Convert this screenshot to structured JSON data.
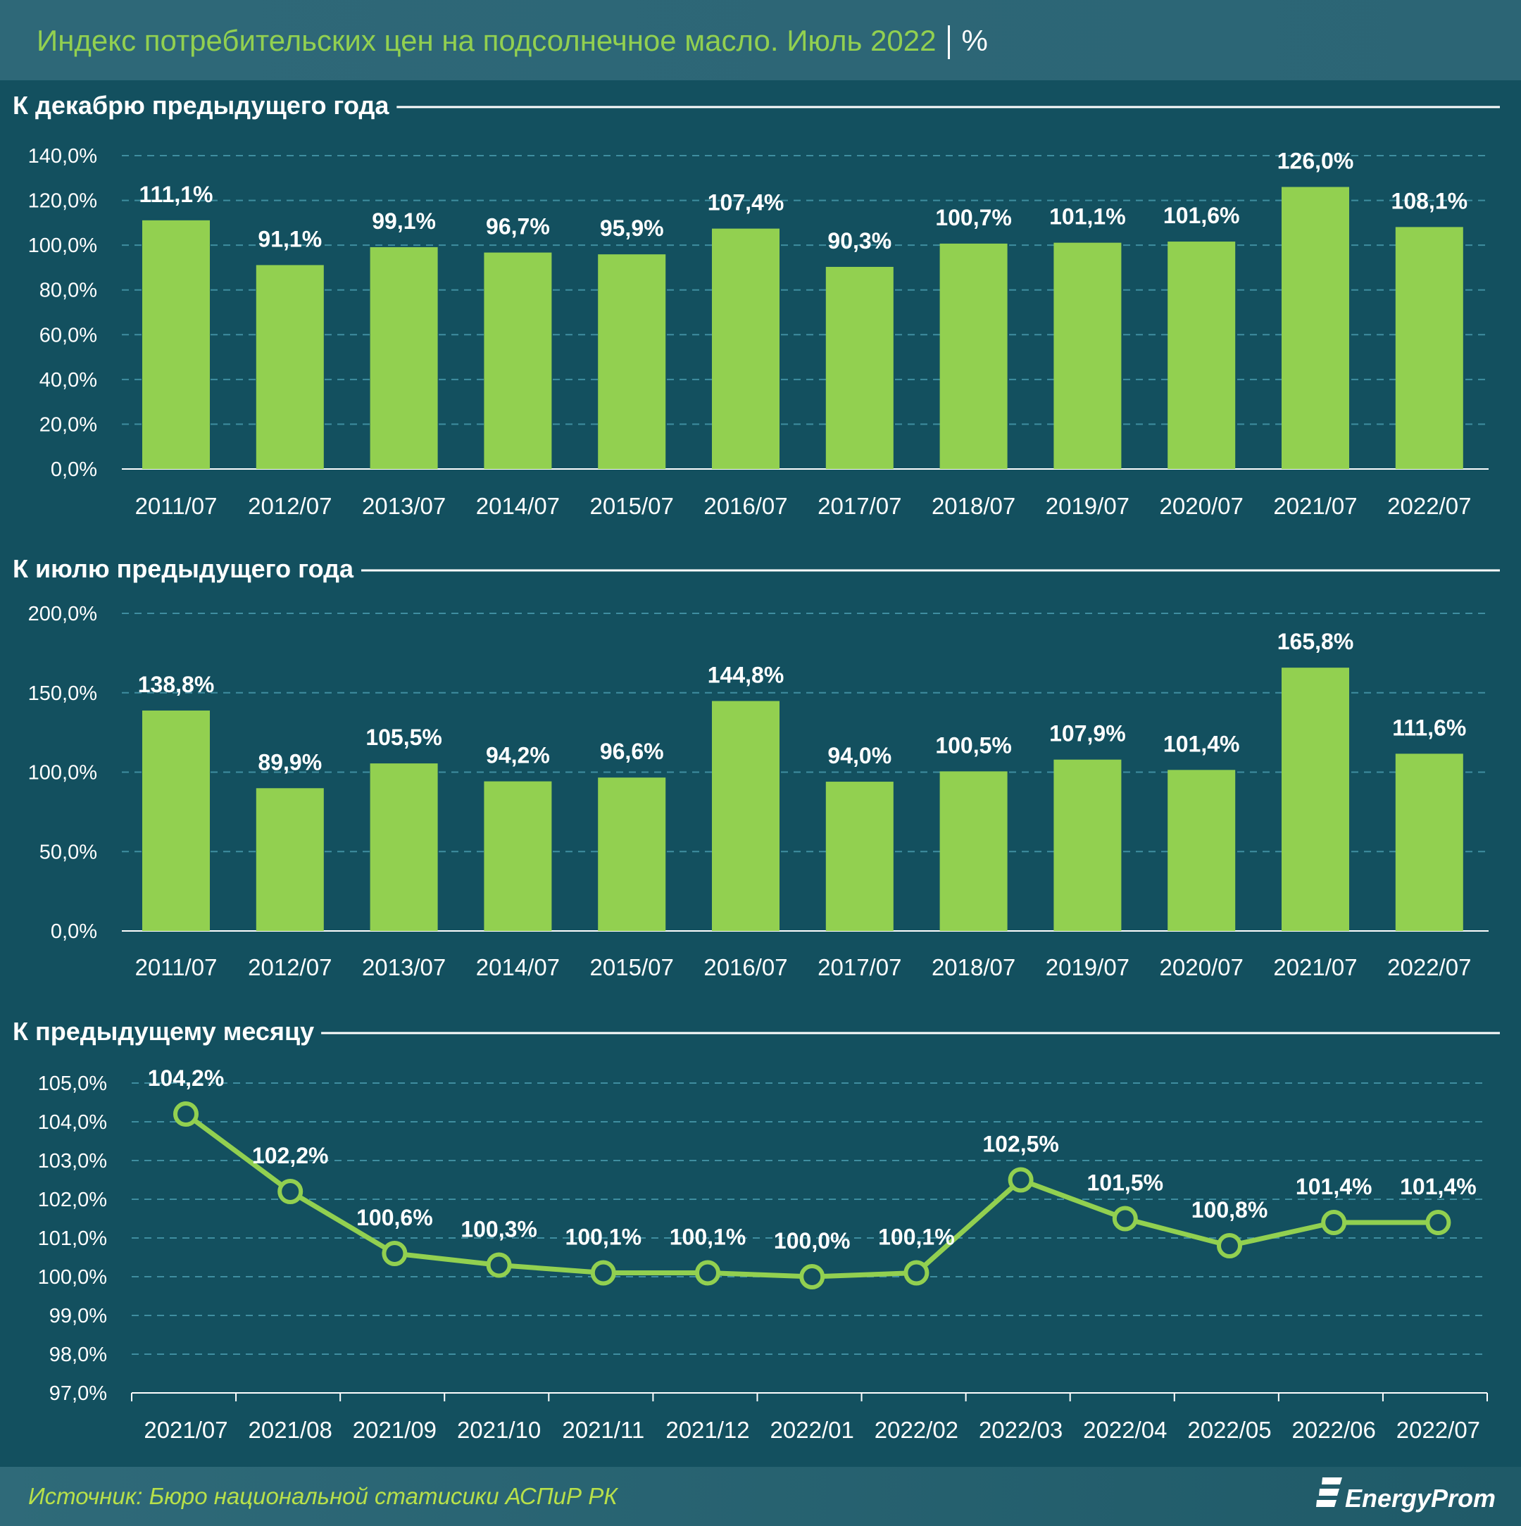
{
  "header": {
    "title": "Индекс потребительских цен на подсолнечное масло. Июль 2022",
    "unit": "%"
  },
  "footer": {
    "source": "Источник: Бюро национальной статисики АСПиР РК",
    "logo": "EnergyProm"
  },
  "colors": {
    "header_bg": "#2e6878",
    "body_bg": "#13505f",
    "bar": "#92d050",
    "title": "#92d050",
    "text": "#ffffff",
    "grid": "#3f8ea0"
  },
  "chart_data": [
    {
      "type": "bar",
      "title": "К декабрю предыдущего года",
      "categories": [
        "2011/07",
        "2012/07",
        "2013/07",
        "2014/07",
        "2015/07",
        "2016/07",
        "2017/07",
        "2018/07",
        "2019/07",
        "2020/07",
        "2021/07",
        "2022/07"
      ],
      "values": [
        111.1,
        91.1,
        99.1,
        96.7,
        95.9,
        107.4,
        90.3,
        100.7,
        101.1,
        101.6,
        126.0,
        108.1
      ],
      "labels": [
        "111,1%",
        "91,1%",
        "99,1%",
        "96,7%",
        "95,9%",
        "107,4%",
        "90,3%",
        "100,7%",
        "101,1%",
        "101,6%",
        "126,0%",
        "108,1%"
      ],
      "yticks": [
        "0,0%",
        "20,0%",
        "40,0%",
        "60,0%",
        "80,0%",
        "100,0%",
        "120,0%",
        "140,0%"
      ],
      "ylim": [
        0,
        140
      ],
      "grid": true
    },
    {
      "type": "bar",
      "title": "К июлю предыдущего года",
      "categories": [
        "2011/07",
        "2012/07",
        "2013/07",
        "2014/07",
        "2015/07",
        "2016/07",
        "2017/07",
        "2018/07",
        "2019/07",
        "2020/07",
        "2021/07",
        "2022/07"
      ],
      "values": [
        138.8,
        89.9,
        105.5,
        94.2,
        96.6,
        144.8,
        94.0,
        100.5,
        107.9,
        101.4,
        165.8,
        111.6
      ],
      "labels": [
        "138,8%",
        "89,9%",
        "105,5%",
        "94,2%",
        "96,6%",
        "144,8%",
        "94,0%",
        "100,5%",
        "107,9%",
        "101,4%",
        "165,8%",
        "111,6%"
      ],
      "yticks": [
        "0,0%",
        "50,0%",
        "100,0%",
        "150,0%",
        "200,0%"
      ],
      "ylim": [
        0,
        200
      ],
      "grid": true
    },
    {
      "type": "line",
      "title": "К предыдущему месяцу",
      "categories": [
        "2021/07",
        "2021/08",
        "2021/09",
        "2021/10",
        "2021/11",
        "2021/12",
        "2022/01",
        "2022/02",
        "2022/03",
        "2022/04",
        "2022/05",
        "2022/06",
        "2022/07"
      ],
      "values": [
        104.2,
        102.2,
        100.6,
        100.3,
        100.1,
        100.1,
        100.0,
        100.1,
        102.5,
        101.5,
        100.8,
        101.4,
        101.4
      ],
      "labels": [
        "104,2%",
        "102,2%",
        "100,6%",
        "100,3%",
        "100,1%",
        "100,1%",
        "100,0%",
        "100,1%",
        "102,5%",
        "101,5%",
        "100,8%",
        "101,4%",
        "101,4%"
      ],
      "yticks": [
        "97,0%",
        "98,0%",
        "99,0%",
        "100,0%",
        "101,0%",
        "102,0%",
        "103,0%",
        "104,0%",
        "105,0%"
      ],
      "ylim": [
        97,
        105
      ],
      "grid": true
    }
  ]
}
